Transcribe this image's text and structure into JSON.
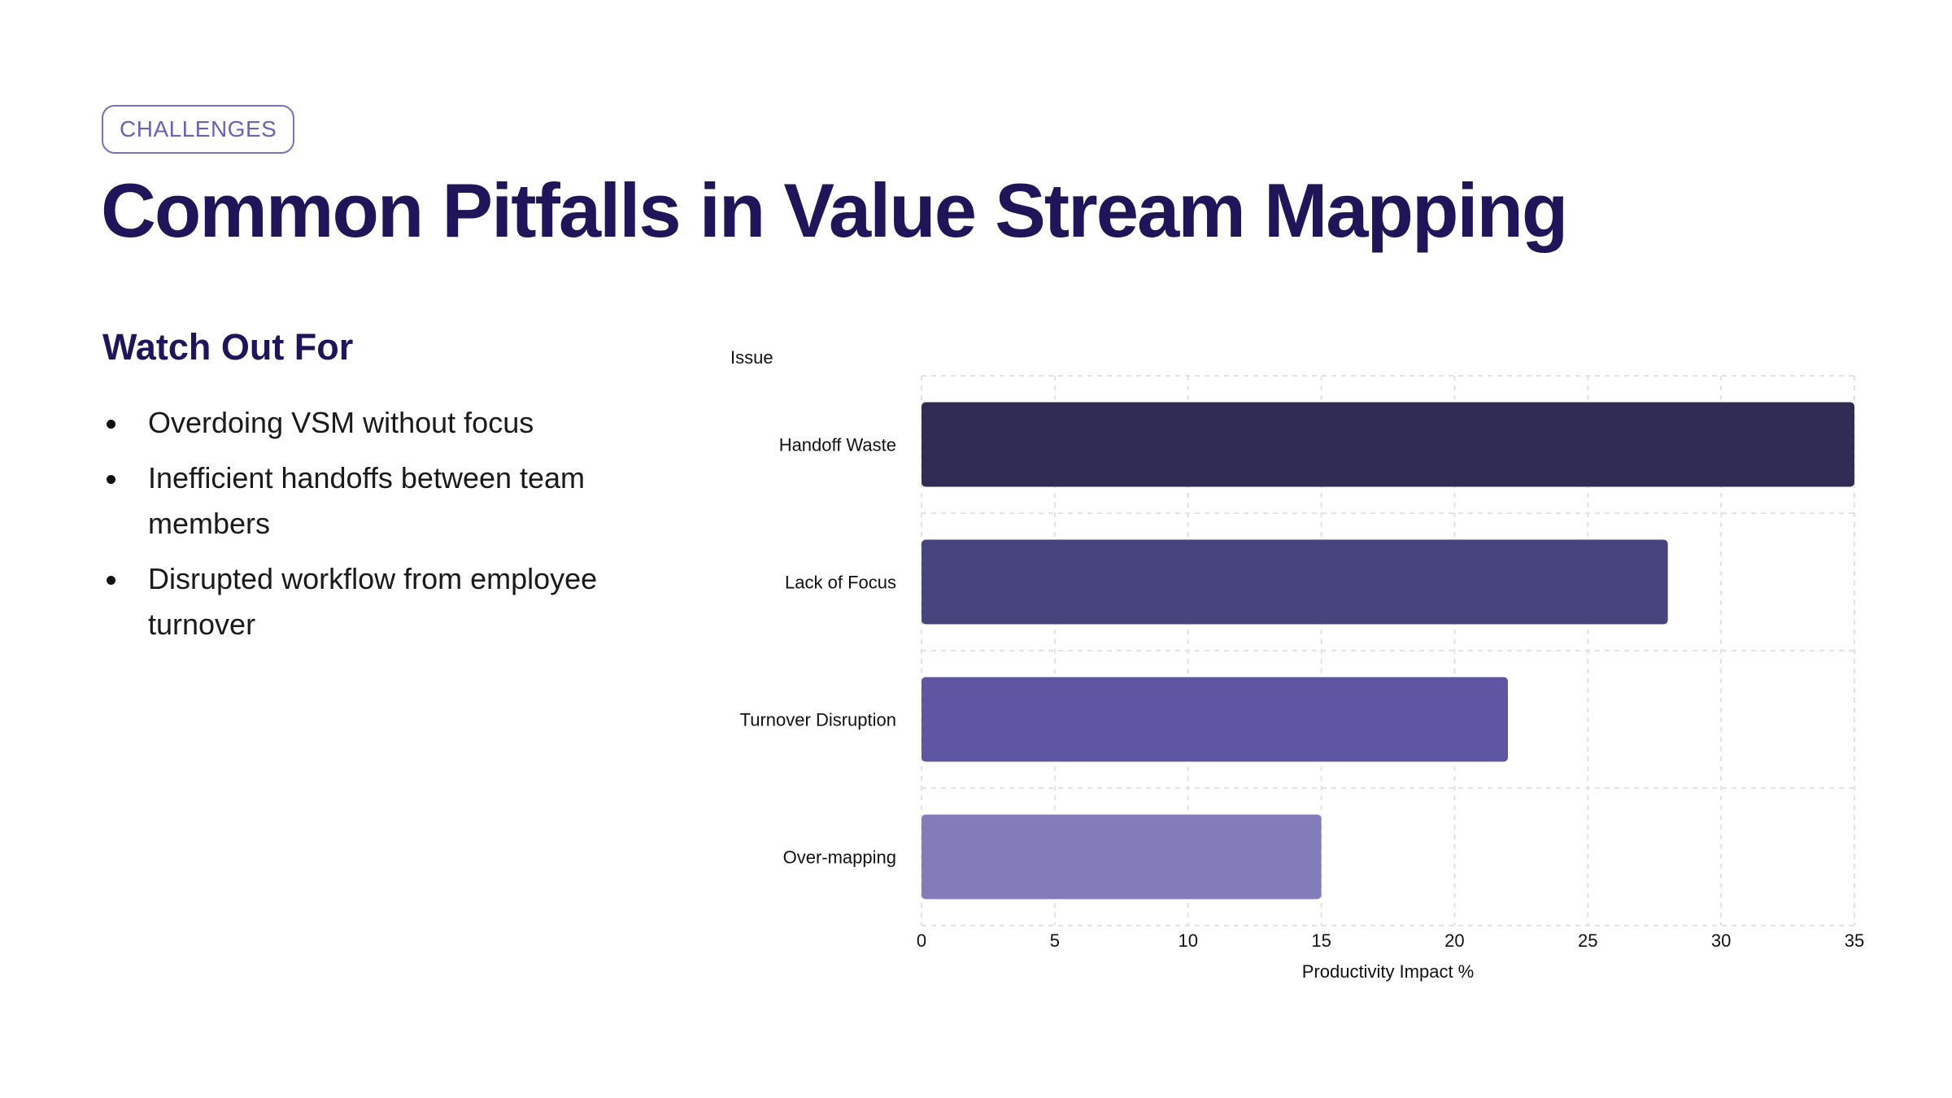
{
  "tag": "CHALLENGES",
  "title": "Common Pitfalls in Value Stream Mapping",
  "left_panel": {
    "heading": "Watch Out For",
    "bullets": [
      "Overdoing VSM without focus",
      "Inefficient handoffs between team members",
      "Disrupted workflow from employee turnover"
    ]
  },
  "colors": {
    "title": "#1f1558",
    "tag_border": "#7b6fc4",
    "bars": [
      "#302c55",
      "#47447d",
      "#5e56a2",
      "#837cba"
    ],
    "grid": "#e2e2e2"
  },
  "chart_data": {
    "type": "bar",
    "orientation": "horizontal",
    "categories": [
      "Handoff Waste",
      "Lack of Focus",
      "Turnover Disruption",
      "Over-mapping"
    ],
    "values": [
      35,
      28,
      22,
      15
    ],
    "xlabel": "Productivity Impact %",
    "ylabel": "Issue",
    "xlim": [
      0,
      35
    ],
    "xticks": [
      "0",
      "5",
      "10",
      "15",
      "20",
      "25",
      "30",
      "35"
    ],
    "grid": true,
    "legend": "none"
  }
}
